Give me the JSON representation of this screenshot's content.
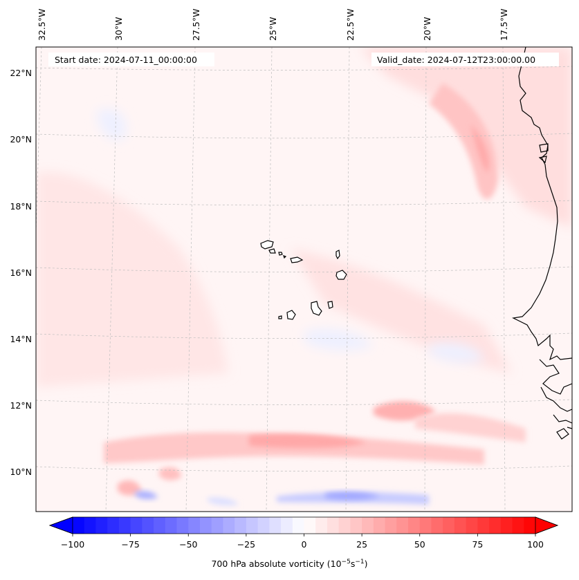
{
  "map": {
    "start_date": "Start date: 2024-07-11_00:00:00",
    "valid_date": "Valid_date: 2024-07-12T23:00:00.00",
    "lon_labels": [
      "32.5°W",
      "30°W",
      "27.5°W",
      "25°W",
      "22.5°W",
      "20°W",
      "17.5°W"
    ],
    "lat_labels": [
      "22°N",
      "20°N",
      "18°N",
      "16°N",
      "14°N",
      "12°N",
      "10°N"
    ],
    "features": [
      "Cape Verde Islands",
      "West African coastline"
    ]
  },
  "colorbar": {
    "ticks": [
      "−100",
      "−75",
      "−50",
      "−25",
      "0",
      "25",
      "50",
      "75",
      "100"
    ],
    "tick_values": [
      -100,
      -75,
      -50,
      -25,
      0,
      25,
      50,
      75,
      100
    ],
    "label_main": "700 hPa absolute vorticity (10",
    "label_exp1": "−5",
    "label_mid": "s",
    "label_exp2": "−1",
    "label_end": ")",
    "colors": {
      "low": "#0000ff",
      "mid": "#ffffff",
      "high": "#ff0000"
    }
  }
}
